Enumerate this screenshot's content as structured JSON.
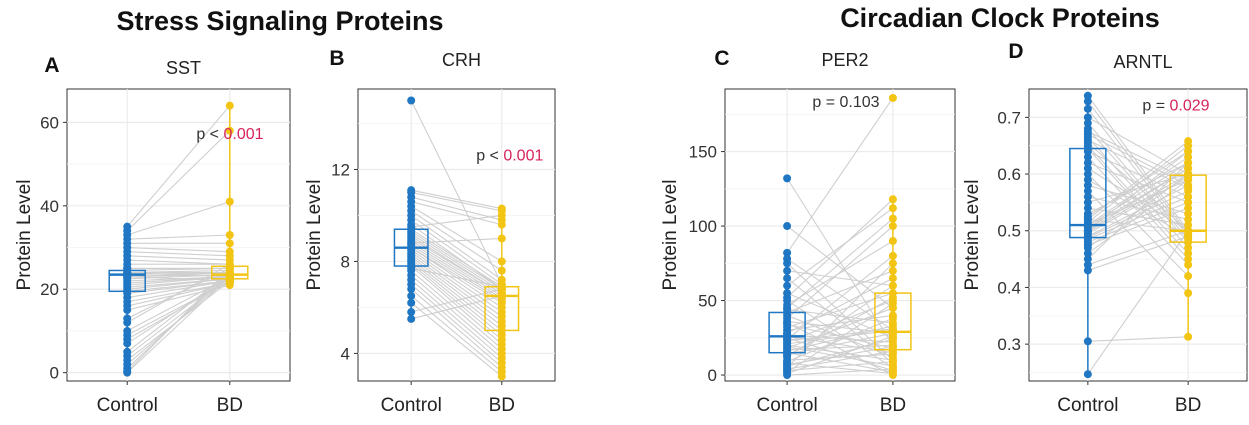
{
  "group_titles": [
    "Stress Signaling Proteins",
    "Circadian Clock Proteins"
  ],
  "colors": {
    "control": "#1f77c4",
    "bd": "#f2c414",
    "pair_line": "#cfcfcf",
    "grid": "#ebebeb",
    "p_highlight": "#d6245a",
    "text": "#333333"
  },
  "chart_data": [
    {
      "type": "box-paired",
      "letter": "A",
      "title": "SST",
      "ylabel": "Protein Level",
      "categories": [
        "Control",
        "BD"
      ],
      "ylim": [
        -2,
        68
      ],
      "yticks": [
        0,
        20,
        40,
        60
      ],
      "p_prefix": "p < ",
      "p_value": "0.001",
      "p_highlight": true,
      "p_x": 0.58,
      "p_y": 56,
      "box": [
        {
          "group": "Control",
          "q1": 19.5,
          "median": 23.5,
          "q3": 24.5,
          "whisker_low": 0,
          "whisker_high": 35
        },
        {
          "group": "BD",
          "q1": 22.5,
          "median": 23.5,
          "q3": 25.5,
          "whisker_low": 21,
          "whisker_high": 64
        }
      ],
      "pairs": [
        [
          35,
          64
        ],
        [
          34,
          58
        ],
        [
          33,
          41
        ],
        [
          32,
          33
        ],
        [
          31,
          31
        ],
        [
          30,
          29
        ],
        [
          29,
          28
        ],
        [
          28,
          27
        ],
        [
          27,
          26
        ],
        [
          26,
          26
        ],
        [
          25,
          25
        ],
        [
          25,
          25
        ],
        [
          24.5,
          25
        ],
        [
          24,
          24.5
        ],
        [
          24,
          24
        ],
        [
          23.5,
          24
        ],
        [
          23,
          24
        ],
        [
          23,
          23.5
        ],
        [
          22.5,
          23.5
        ],
        [
          22,
          23
        ],
        [
          21.5,
          23
        ],
        [
          21,
          23
        ],
        [
          20.5,
          22.5
        ],
        [
          20,
          22.5
        ],
        [
          19.5,
          22
        ],
        [
          19,
          22
        ],
        [
          18,
          22
        ],
        [
          17,
          21.5
        ],
        [
          16,
          21.5
        ],
        [
          15,
          21
        ],
        [
          13,
          25
        ],
        [
          12,
          26
        ],
        [
          10,
          23
        ],
        [
          9,
          22
        ],
        [
          8,
          22
        ],
        [
          7,
          23
        ],
        [
          5,
          24
        ],
        [
          4,
          23
        ],
        [
          3,
          22
        ],
        [
          2,
          23
        ],
        [
          1,
          24
        ],
        [
          0.3,
          25
        ],
        [
          0,
          23
        ],
        [
          23,
          22
        ],
        [
          24,
          23
        ]
      ]
    },
    {
      "type": "box-paired",
      "letter": "B",
      "title": "CRH",
      "ylabel": "Protein Level",
      "categories": [
        "Control",
        "BD"
      ],
      "ylim": [
        2.8,
        15.5
      ],
      "yticks": [
        4,
        8,
        12
      ],
      "p_prefix": "p < ",
      "p_value": "0.001",
      "p_highlight": true,
      "p_x": 0.6,
      "p_y": 12.4,
      "box": [
        {
          "group": "Control",
          "q1": 7.8,
          "median": 8.6,
          "q3": 9.4,
          "whisker_low": 5.5,
          "whisker_high": 11.1
        },
        {
          "group": "BD",
          "q1": 5.0,
          "median": 6.5,
          "q3": 6.9,
          "whisker_low": 3.0,
          "whisker_high": 10.3
        }
      ],
      "pairs": [
        [
          15.0,
          7.0
        ],
        [
          11.1,
          10.3
        ],
        [
          11.0,
          10.2
        ],
        [
          10.8,
          9.8
        ],
        [
          10.6,
          9.6
        ],
        [
          10.4,
          8.0
        ],
        [
          10.2,
          7.6
        ],
        [
          10.0,
          7.2
        ],
        [
          9.8,
          7.0
        ],
        [
          9.6,
          6.8
        ],
        [
          9.4,
          6.9
        ],
        [
          9.3,
          6.8
        ],
        [
          9.2,
          6.7
        ],
        [
          9.1,
          6.6
        ],
        [
          9.0,
          6.6
        ],
        [
          8.9,
          6.5
        ],
        [
          8.8,
          6.4
        ],
        [
          8.7,
          6.3
        ],
        [
          8.6,
          6.2
        ],
        [
          8.6,
          6.0
        ],
        [
          8.5,
          5.8
        ],
        [
          8.4,
          5.6
        ],
        [
          8.3,
          5.4
        ],
        [
          8.2,
          5.2
        ],
        [
          8.1,
          5.0
        ],
        [
          8.0,
          4.8
        ],
        [
          7.9,
          4.6
        ],
        [
          7.8,
          4.4
        ],
        [
          7.6,
          4.2
        ],
        [
          7.4,
          4.0
        ],
        [
          7.2,
          3.8
        ],
        [
          7.0,
          3.6
        ],
        [
          6.8,
          3.4
        ],
        [
          6.5,
          3.2
        ],
        [
          6.2,
          3.0
        ],
        [
          5.8,
          6.8
        ],
        [
          5.5,
          6.5
        ],
        [
          9.5,
          10.0
        ],
        [
          8.8,
          9.0
        ],
        [
          7.7,
          6.9
        ]
      ]
    },
    {
      "type": "box-paired",
      "letter": "C",
      "title": "PER2",
      "ylabel": "Protein Level",
      "categories": [
        "Control",
        "BD"
      ],
      "ylim": [
        -4,
        192
      ],
      "yticks": [
        0,
        50,
        100,
        150
      ],
      "p_prefix": "p = ",
      "p_value": "0.103",
      "p_highlight": false,
      "p_x": 0.38,
      "p_y": 180,
      "box": [
        {
          "group": "Control",
          "q1": 15,
          "median": 26,
          "q3": 42,
          "whisker_low": 0,
          "whisker_high": 82
        },
        {
          "group": "BD",
          "q1": 17,
          "median": 29,
          "q3": 55,
          "whisker_low": 0,
          "whisker_high": 118
        }
      ],
      "pairs": [
        [
          132,
          20
        ],
        [
          100,
          45
        ],
        [
          82,
          186
        ],
        [
          78,
          30
        ],
        [
          75,
          10
        ],
        [
          70,
          60
        ],
        [
          65,
          8
        ],
        [
          60,
          112
        ],
        [
          55,
          25
        ],
        [
          52,
          118
        ],
        [
          50,
          5
        ],
        [
          47,
          90
        ],
        [
          44,
          35
        ],
        [
          42,
          70
        ],
        [
          40,
          12
        ],
        [
          38,
          100
        ],
        [
          36,
          28
        ],
        [
          34,
          18
        ],
        [
          32,
          55
        ],
        [
          30,
          40
        ],
        [
          28,
          65
        ],
        [
          27,
          22
        ],
        [
          26,
          15
        ],
        [
          25,
          3
        ],
        [
          24,
          80
        ],
        [
          22,
          50
        ],
        [
          21,
          30
        ],
        [
          20,
          10
        ],
        [
          19,
          6
        ],
        [
          18,
          45
        ],
        [
          17,
          20
        ],
        [
          16,
          33
        ],
        [
          15,
          2
        ],
        [
          14,
          28
        ],
        [
          12,
          60
        ],
        [
          10,
          14
        ],
        [
          9,
          38
        ],
        [
          8,
          1
        ],
        [
          6,
          24
        ],
        [
          5,
          75
        ],
        [
          4,
          16
        ],
        [
          3,
          9
        ],
        [
          2,
          48
        ],
        [
          1,
          26
        ],
        [
          0,
          4
        ],
        [
          45,
          105
        ],
        [
          35,
          0
        ],
        [
          23,
          31
        ],
        [
          13,
          52
        ],
        [
          7,
          19
        ]
      ]
    },
    {
      "type": "box-paired",
      "letter": "D",
      "title": "ARNTL",
      "ylabel": "Protein Level",
      "categories": [
        "Control",
        "BD"
      ],
      "ylim": [
        0.235,
        0.75
      ],
      "yticks": [
        0.3,
        0.4,
        0.5,
        0.6,
        0.7
      ],
      "p_prefix": "p = ",
      "p_value": "0.029",
      "p_highlight": true,
      "p_x": 0.52,
      "p_y": 0.712,
      "box": [
        {
          "group": "Control",
          "q1": 0.488,
          "median": 0.51,
          "q3": 0.645,
          "whisker_low": 0.247,
          "whisker_high": 0.738
        },
        {
          "group": "BD",
          "q1": 0.48,
          "median": 0.5,
          "q3": 0.598,
          "whisker_low": 0.313,
          "whisker_high": 0.658
        }
      ],
      "pairs": [
        [
          0.738,
          0.5
        ],
        [
          0.728,
          0.495
        ],
        [
          0.715,
          0.49
        ],
        [
          0.7,
          0.6
        ],
        [
          0.69,
          0.485
        ],
        [
          0.68,
          0.48
        ],
        [
          0.675,
          0.59
        ],
        [
          0.67,
          0.58
        ],
        [
          0.665,
          0.47
        ],
        [
          0.66,
          0.575
        ],
        [
          0.655,
          0.5
        ],
        [
          0.65,
          0.46
        ],
        [
          0.645,
          0.45
        ],
        [
          0.64,
          0.56
        ],
        [
          0.63,
          0.44
        ],
        [
          0.62,
          0.55
        ],
        [
          0.61,
          0.5
        ],
        [
          0.6,
          0.42
        ],
        [
          0.59,
          0.49
        ],
        [
          0.58,
          0.53
        ],
        [
          0.57,
          0.39
        ],
        [
          0.56,
          0.52
        ],
        [
          0.55,
          0.6
        ],
        [
          0.54,
          0.51
        ],
        [
          0.53,
          0.62
        ],
        [
          0.525,
          0.64
        ],
        [
          0.52,
          0.658
        ],
        [
          0.515,
          0.65
        ],
        [
          0.51,
          0.63
        ],
        [
          0.508,
          0.62
        ],
        [
          0.505,
          0.61
        ],
        [
          0.5,
          0.61
        ],
        [
          0.498,
          0.6
        ],
        [
          0.495,
          0.595
        ],
        [
          0.49,
          0.58
        ],
        [
          0.488,
          0.57
        ],
        [
          0.485,
          0.56
        ],
        [
          0.48,
          0.55
        ],
        [
          0.475,
          0.54
        ],
        [
          0.47,
          0.6
        ],
        [
          0.46,
          0.59
        ],
        [
          0.45,
          0.62
        ],
        [
          0.44,
          0.5
        ],
        [
          0.43,
          0.49
        ],
        [
          0.305,
          0.313
        ],
        [
          0.247,
          0.5
        ],
        [
          0.5,
          0.64
        ],
        [
          0.51,
          0.59
        ],
        [
          0.52,
          0.5
        ]
      ]
    }
  ]
}
